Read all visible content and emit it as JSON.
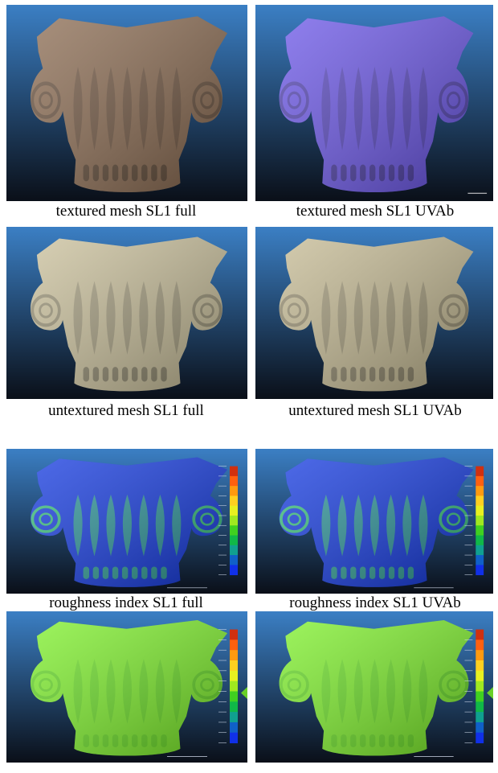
{
  "figure": {
    "panels": [
      {
        "caption": "textured mesh SL1 full",
        "render": "textured-photo",
        "colors": {
          "bgTop": "#3b7fc4",
          "bgBottom": "#0a0f18",
          "body": "#8a6a50"
        }
      },
      {
        "caption": "textured mesh SL1 UVAb",
        "render": "textured-blue",
        "colors": {
          "bgTop": "#3b7fc4",
          "bgBottom": "#0a0f18",
          "body": "#6a55e8"
        }
      },
      {
        "caption": "untextured mesh SL1 full",
        "render": "shaded-gray",
        "colors": {
          "bgTop": "#3b7fc4",
          "bgBottom": "#0a0f18",
          "body": "#c9bf9a"
        }
      },
      {
        "caption": "untextured mesh SL1 UVAb",
        "render": "shaded-gray",
        "colors": {
          "bgTop": "#3b7fc4",
          "bgBottom": "#0a0f18",
          "body": "#c4b992"
        }
      },
      {
        "caption": "roughness index SL1 full",
        "render": "scalar-field",
        "colors": {
          "bgTop": "#3b7fc4",
          "bgBottom": "#0a0f18",
          "body": "#1238e0",
          "detail": "#3fe060"
        }
      },
      {
        "caption": "roughness index SL1 UVAb",
        "render": "scalar-field",
        "colors": {
          "bgTop": "#3b7fc4",
          "bgBottom": "#0a0f18",
          "body": "#1238e0",
          "detail": "#3fe060"
        }
      },
      {
        "caption": "",
        "render": "scalar-field-green",
        "colors": {
          "bgTop": "#3b7fc4",
          "bgBottom": "#0a0f18",
          "body": "#7cf028",
          "detail": "#5ad020"
        }
      },
      {
        "caption": "",
        "render": "scalar-field-green",
        "colors": {
          "bgTop": "#3b7fc4",
          "bgBottom": "#0a0f18",
          "body": "#7cf028",
          "detail": "#5ad020"
        }
      }
    ],
    "color_scale": [
      "#d03010",
      "#ff6010",
      "#ff9a10",
      "#ffd020",
      "#e8f020",
      "#a0e820",
      "#40d020",
      "#10b848",
      "#10a090",
      "#1060c8",
      "#1030e8"
    ]
  }
}
